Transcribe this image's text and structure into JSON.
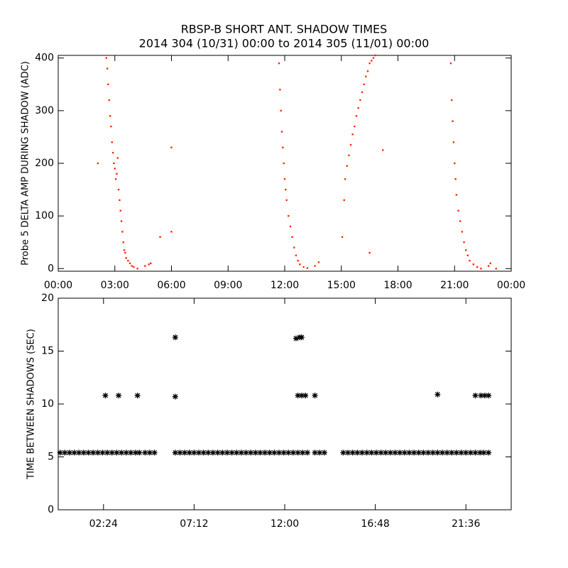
{
  "chart_data": [
    {
      "type": "scatter",
      "title": "RBSP-B SHORT ANT. SHADOW TIMES",
      "subtitle": "2014 304 (10/31) 00:00 to 2014 305 (11/01) 00:00",
      "ylabel": "Probe 5 DELTA AMP DURING SHADOW (ADC)",
      "color": "#ff2a00",
      "marker": "dot",
      "xlim": [
        0,
        24
      ],
      "ylim": [
        -5,
        405
      ],
      "xticks": [
        {
          "value": 0,
          "label": "00:00"
        },
        {
          "value": 3,
          "label": "03:00"
        },
        {
          "value": 6,
          "label": "06:00"
        },
        {
          "value": 9,
          "label": "09:00"
        },
        {
          "value": 12,
          "label": "12:00"
        },
        {
          "value": 15,
          "label": "15:00"
        },
        {
          "value": 18,
          "label": "18:00"
        },
        {
          "value": 21,
          "label": "21:00"
        },
        {
          "value": 24,
          "label": "00:00"
        }
      ],
      "yticks": [
        0,
        100,
        200,
        300,
        400
      ],
      "x": [
        2.55,
        2.6,
        2.65,
        2.7,
        2.75,
        2.8,
        2.85,
        2.9,
        2.95,
        3.0,
        3.05,
        3.1,
        3.15,
        3.2,
        3.25,
        3.3,
        3.35,
        3.4,
        3.45,
        3.5,
        3.55,
        3.6,
        3.7,
        3.8,
        3.9,
        4.0,
        4.2,
        4.6,
        4.8,
        4.9,
        11.7,
        11.75,
        11.8,
        11.85,
        11.9,
        11.95,
        12.0,
        12.05,
        12.1,
        12.2,
        12.3,
        12.4,
        12.5,
        12.6,
        12.7,
        12.8,
        13.0,
        13.2,
        13.6,
        13.8,
        15.15,
        15.2,
        15.3,
        15.4,
        15.5,
        15.6,
        15.7,
        15.8,
        15.9,
        16.0,
        16.1,
        16.2,
        16.3,
        16.4,
        16.5,
        16.6,
        16.7,
        16.8,
        15.05,
        20.8,
        20.85,
        20.9,
        20.95,
        21.0,
        21.05,
        21.1,
        21.2,
        21.3,
        21.4,
        21.5,
        21.6,
        21.7,
        21.8,
        22.0,
        22.2,
        22.4,
        22.8,
        22.9,
        2.1,
        6.0,
        6.0,
        5.4,
        16.5,
        17.2,
        23.2
      ],
      "values": [
        400,
        380,
        350,
        320,
        290,
        270,
        240,
        220,
        200,
        190,
        170,
        180,
        210,
        150,
        130,
        110,
        90,
        70,
        50,
        35,
        30,
        20,
        15,
        10,
        5,
        3,
        0,
        5,
        8,
        10,
        390,
        340,
        300,
        260,
        230,
        200,
        170,
        150,
        130,
        100,
        80,
        60,
        40,
        25,
        15,
        8,
        3,
        1,
        5,
        12,
        130,
        170,
        195,
        215,
        235,
        255,
        270,
        290,
        305,
        320,
        335,
        350,
        365,
        375,
        390,
        395,
        400,
        405,
        60,
        390,
        320,
        280,
        240,
        200,
        170,
        140,
        110,
        90,
        70,
        50,
        35,
        25,
        15,
        8,
        3,
        0,
        5,
        10,
        200,
        230,
        70,
        60,
        30,
        225,
        0
      ]
    },
    {
      "type": "scatter",
      "ylabel": "TIME BETWEEN SHADOWS (SEC)",
      "color": "#000000",
      "marker": "asterisk",
      "xlim": [
        0,
        24
      ],
      "ylim": [
        0,
        20
      ],
      "xticks": [
        {
          "value": 2.4,
          "label": "02:24"
        },
        {
          "value": 7.2,
          "label": "07:12"
        },
        {
          "value": 12,
          "label": "12:00"
        },
        {
          "value": 16.8,
          "label": "16:48"
        },
        {
          "value": 21.6,
          "label": "21:36"
        }
      ],
      "yticks": [
        0,
        5,
        10,
        15,
        20
      ],
      "x": [
        0.1,
        0.35,
        0.6,
        0.85,
        1.1,
        1.35,
        1.6,
        1.85,
        2.1,
        2.35,
        2.6,
        2.85,
        3.1,
        3.35,
        3.6,
        3.85,
        4.1,
        4.3,
        4.6,
        4.85,
        5.1,
        6.2,
        6.45,
        6.7,
        6.95,
        7.2,
        7.45,
        7.7,
        7.95,
        8.2,
        8.45,
        8.7,
        8.95,
        9.2,
        9.45,
        9.7,
        9.95,
        10.2,
        10.45,
        10.7,
        10.95,
        11.2,
        11.45,
        11.7,
        11.95,
        12.2,
        12.45,
        12.7,
        12.95,
        13.2,
        13.6,
        13.85,
        14.1,
        15.1,
        15.35,
        15.6,
        15.85,
        16.1,
        16.35,
        16.6,
        16.85,
        17.1,
        17.35,
        17.6,
        17.85,
        18.1,
        18.35,
        18.6,
        18.85,
        19.1,
        19.35,
        19.6,
        19.85,
        20.1,
        20.35,
        20.6,
        20.85,
        21.1,
        21.35,
        21.6,
        21.85,
        22.1,
        22.35,
        22.55,
        22.8,
        2.5,
        3.2,
        4.2,
        6.2,
        6.2,
        12.6,
        12.8,
        12.9,
        12.7,
        12.9,
        13.1,
        13.6,
        20.1,
        22.1,
        22.4,
        22.6,
        22.8
      ],
      "values": [
        5.4,
        5.4,
        5.4,
        5.4,
        5.4,
        5.4,
        5.4,
        5.4,
        5.4,
        5.4,
        5.4,
        5.4,
        5.4,
        5.4,
        5.4,
        5.4,
        5.4,
        5.4,
        5.4,
        5.4,
        5.4,
        5.4,
        5.4,
        5.4,
        5.4,
        5.4,
        5.4,
        5.4,
        5.4,
        5.4,
        5.4,
        5.4,
        5.4,
        5.4,
        5.4,
        5.4,
        5.4,
        5.4,
        5.4,
        5.4,
        5.4,
        5.4,
        5.4,
        5.4,
        5.4,
        5.4,
        5.4,
        5.4,
        5.4,
        5.4,
        5.4,
        5.4,
        5.4,
        5.4,
        5.4,
        5.4,
        5.4,
        5.4,
        5.4,
        5.4,
        5.4,
        5.4,
        5.4,
        5.4,
        5.4,
        5.4,
        5.4,
        5.4,
        5.4,
        5.4,
        5.4,
        5.4,
        5.4,
        5.4,
        5.4,
        5.4,
        5.4,
        5.4,
        5.4,
        5.4,
        5.4,
        5.4,
        5.4,
        5.4,
        5.4,
        10.8,
        10.8,
        10.8,
        16.3,
        10.7,
        16.2,
        16.3,
        16.3,
        10.8,
        10.8,
        10.8,
        10.8,
        10.9,
        10.8,
        10.8,
        10.8,
        10.8
      ]
    }
  ]
}
